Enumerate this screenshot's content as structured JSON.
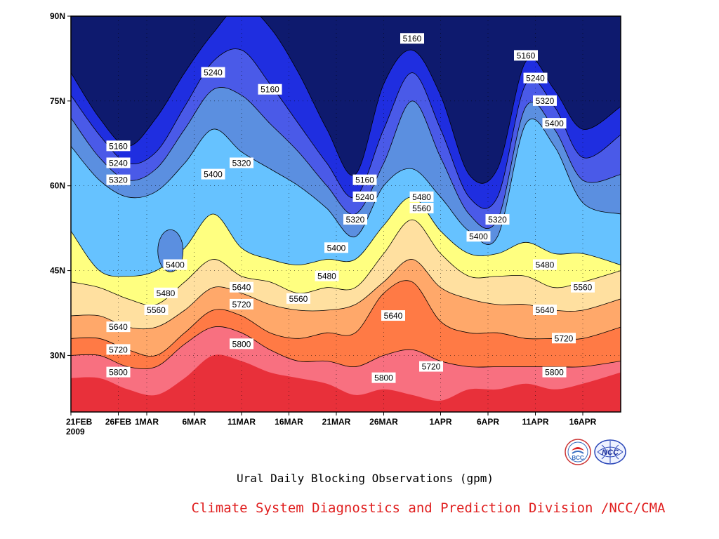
{
  "chart_data": {
    "type": "heatmap",
    "caption": "Ural Daily Blocking Observations (gpm)",
    "credit": "Climate System Diagnostics and Prediction Division /NCC/CMA",
    "logos": [
      "BCC",
      "NCC"
    ],
    "x_ticks": [
      "21FEB\n2009",
      "26FEB",
      "1MAR",
      "6MAR",
      "11MAR",
      "16MAR",
      "21MAR",
      "26MAR",
      "1APR",
      "6APR",
      "11APR",
      "16APR"
    ],
    "x_tick_days": [
      0,
      5,
      8,
      13,
      18,
      23,
      28,
      33,
      39,
      44,
      49,
      54
    ],
    "xlim_days": [
      0,
      58
    ],
    "y_ticks": [
      "30N",
      "45N",
      "60N",
      "75N",
      "90N"
    ],
    "y_tick_values": [
      30,
      45,
      60,
      75,
      90
    ],
    "ylim": [
      20,
      90
    ],
    "grid": true,
    "contour_levels": [
      5160,
      5240,
      5320,
      5400,
      5480,
      5560,
      5640,
      5720,
      5800
    ],
    "fill_colors": [
      "#0e1a6e",
      "#1f2ee0",
      "#4a5ae8",
      "#5b8fe0",
      "#66c2ff",
      "#ffff80",
      "#ffe0a0",
      "#ffa86a",
      "#ff7a45",
      "#f87080",
      "#e8303a"
    ],
    "contour_labels": [
      {
        "text": "5160",
        "day": 5,
        "lat": 67
      },
      {
        "text": "5240",
        "day": 5,
        "lat": 64
      },
      {
        "text": "5320",
        "day": 5,
        "lat": 61
      },
      {
        "text": "5400",
        "day": 11,
        "lat": 46
      },
      {
        "text": "5480",
        "day": 10,
        "lat": 41
      },
      {
        "text": "5560",
        "day": 9,
        "lat": 38
      },
      {
        "text": "5640",
        "day": 5,
        "lat": 35
      },
      {
        "text": "5720",
        "day": 5,
        "lat": 31
      },
      {
        "text": "5800",
        "day": 5,
        "lat": 27
      },
      {
        "text": "5240",
        "day": 15,
        "lat": 80
      },
      {
        "text": "5160",
        "day": 21,
        "lat": 77
      },
      {
        "text": "5320",
        "day": 18,
        "lat": 64
      },
      {
        "text": "5400",
        "day": 15,
        "lat": 62
      },
      {
        "text": "5640",
        "day": 18,
        "lat": 42
      },
      {
        "text": "5720",
        "day": 18,
        "lat": 39
      },
      {
        "text": "5800",
        "day": 18,
        "lat": 32
      },
      {
        "text": "5560",
        "day": 24,
        "lat": 40
      },
      {
        "text": "5480",
        "day": 27,
        "lat": 44
      },
      {
        "text": "5400",
        "day": 28,
        "lat": 49
      },
      {
        "text": "5160",
        "day": 31,
        "lat": 61
      },
      {
        "text": "5240",
        "day": 31,
        "lat": 58
      },
      {
        "text": "5320",
        "day": 30,
        "lat": 54
      },
      {
        "text": "5640",
        "day": 34,
        "lat": 37
      },
      {
        "text": "5800",
        "day": 33,
        "lat": 26
      },
      {
        "text": "5160",
        "day": 36,
        "lat": 86
      },
      {
        "text": "5480",
        "day": 37,
        "lat": 58
      },
      {
        "text": "5560",
        "day": 37,
        "lat": 56
      },
      {
        "text": "5720",
        "day": 38,
        "lat": 28
      },
      {
        "text": "5320",
        "day": 45,
        "lat": 54
      },
      {
        "text": "5400",
        "day": 43,
        "lat": 51
      },
      {
        "text": "5160",
        "day": 48,
        "lat": 83
      },
      {
        "text": "5240",
        "day": 49,
        "lat": 79
      },
      {
        "text": "5320",
        "day": 50,
        "lat": 75
      },
      {
        "text": "5400",
        "day": 51,
        "lat": 71
      },
      {
        "text": "5480",
        "day": 50,
        "lat": 46
      },
      {
        "text": "5560",
        "day": 54,
        "lat": 42
      },
      {
        "text": "5640",
        "day": 50,
        "lat": 38
      },
      {
        "text": "5720",
        "day": 52,
        "lat": 33
      },
      {
        "text": "5800",
        "day": 51,
        "lat": 27
      }
    ]
  }
}
